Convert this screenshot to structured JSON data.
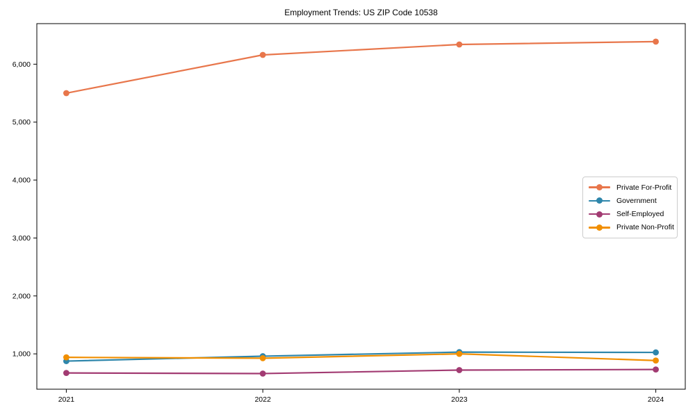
{
  "chart_data": {
    "type": "line",
    "title": "Employment Trends: US ZIP Code 10538",
    "categories": [
      "2021",
      "2022",
      "2023",
      "2024"
    ],
    "series": [
      {
        "name": "Private For-Profit",
        "color": "#E8764B",
        "values": [
          5500,
          6160,
          6340,
          6390
        ]
      },
      {
        "name": "Government",
        "color": "#2E86AB",
        "values": [
          875,
          960,
          1030,
          1025
        ]
      },
      {
        "name": "Self-Employed",
        "color": "#A23B72",
        "values": [
          670,
          660,
          720,
          730
        ]
      },
      {
        "name": "Private Non-Profit",
        "color": "#F18F01",
        "values": [
          940,
          925,
          1000,
          885
        ]
      }
    ],
    "xlabel": "",
    "ylabel": "",
    "xlim": [
      -0.15,
      3.15
    ],
    "ylim": [
      390,
      6700
    ],
    "yticks": [
      1000,
      2000,
      3000,
      4000,
      5000,
      6000
    ],
    "ytick_labels": [
      "1,000",
      "2,000",
      "3,000",
      "4,000",
      "5,000",
      "6,000"
    ],
    "grid": false,
    "legend_position": "center-right",
    "marker": "circle",
    "axis_color": "#000000",
    "background_color": "#ffffff"
  }
}
